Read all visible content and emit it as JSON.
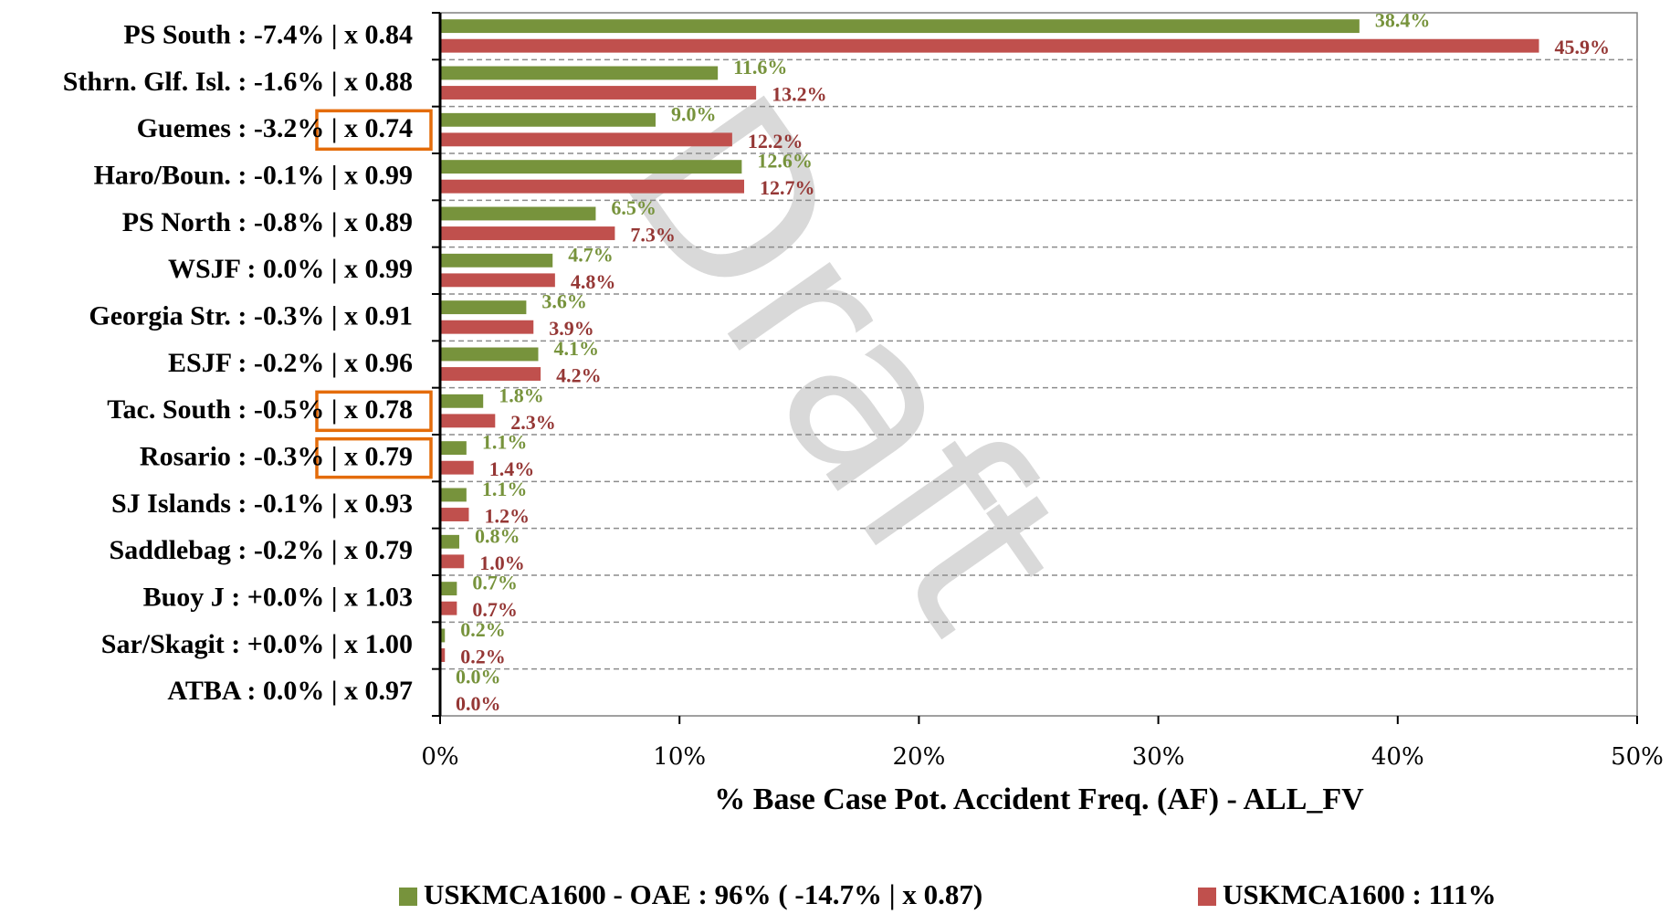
{
  "chart_data": {
    "type": "barh",
    "xlabel": "% Base Case Pot. Accident Freq. (AF) - ALL_FV",
    "watermark": "Draft",
    "categories": [
      "PS South : -7.4% |  x 0.84",
      "Sthrn. Glf. Isl. : -1.6% |  x 0.88",
      "Guemes : -3.2% |  x 0.74",
      "Haro/Boun. : -0.1% |  x 0.99",
      "PS North : -0.8% |  x 0.89",
      "WSJF : 0.0% |  x 0.99",
      "Georgia Str. : -0.3% |  x 0.91",
      "ESJF : -0.2% |  x 0.96",
      "Tac. South : -0.5% |  x 0.78",
      "Rosario : -0.3% |  x 0.79",
      "SJ Islands : -0.1% |  x 0.93",
      "Saddlebag : -0.2% |  x 0.79",
      "Buoy J : +0.0% |  x 1.03",
      "Sar/Skagit : +0.0% |  x 1.00",
      "ATBA : 0.0% |  x 0.97"
    ],
    "series": [
      {
        "name": "USKMCA1600 - OAE : 96% ( -14.7% |  x 0.87)",
        "color": "#77933c",
        "label_color": "#77933c",
        "values": [
          38.4,
          11.6,
          9.0,
          12.6,
          6.5,
          4.7,
          3.6,
          4.1,
          1.8,
          1.1,
          1.1,
          0.8,
          0.7,
          0.2,
          0.0
        ],
        "value_labels": [
          "38.4%",
          "11.6%",
          "9.0%",
          "12.6%",
          "6.5%",
          "4.7%",
          "3.6%",
          "4.1%",
          "1.8%",
          "1.1%",
          "1.1%",
          "0.8%",
          "0.7%",
          "0.2%",
          "0.0%"
        ]
      },
      {
        "name": "USKMCA1600 : 111%",
        "color": "#c0504d",
        "label_color": "#953735",
        "values": [
          45.9,
          13.2,
          12.2,
          12.7,
          7.3,
          4.8,
          3.9,
          4.2,
          2.3,
          1.4,
          1.2,
          1.0,
          0.7,
          0.2,
          0.0
        ],
        "value_labels": [
          "45.9%",
          "13.2%",
          "12.2%",
          "12.7%",
          "7.3%",
          "4.8%",
          "3.9%",
          "4.2%",
          "2.3%",
          "1.4%",
          "1.2%",
          "1.0%",
          "0.7%",
          "0.2%",
          "0.0%"
        ]
      }
    ],
    "xlim": [
      0,
      50
    ],
    "xticks": [
      {
        "value": 0,
        "label": "0%"
      },
      {
        "value": 10,
        "label": "10%"
      },
      {
        "value": 20,
        "label": "20%"
      },
      {
        "value": 30,
        "label": "30%"
      },
      {
        "value": 40,
        "label": "40%"
      },
      {
        "value": 50,
        "label": "50%"
      }
    ],
    "grid": "dashed",
    "legend": "bottom"
  }
}
